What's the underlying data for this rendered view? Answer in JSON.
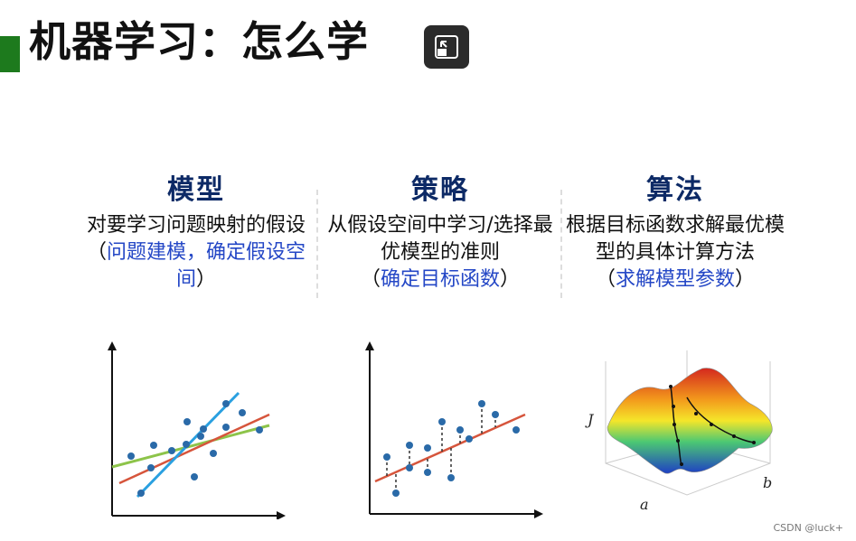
{
  "header": {
    "title": "机器学习：怎么学"
  },
  "columns": [
    {
      "heading": "模型",
      "desc_plain": "对要学习问题映射的假设",
      "paren_open": "（",
      "desc_blue": "问题建模，确定假设空间",
      "paren_close": "）"
    },
    {
      "heading": "策略",
      "desc_plain": "从假设空间中学习/选择最优模型的准则",
      "paren_open": "（",
      "desc_blue": "确定目标函数",
      "paren_close": "）"
    },
    {
      "heading": "算法",
      "desc_plain": "根据目标函数求解最优模型的具体计算方法",
      "paren_open": "（",
      "desc_blue": "求解模型参数",
      "paren_close": "）"
    }
  ],
  "surface_axes": {
    "y": "J",
    "x": "a",
    "z": "b"
  },
  "watermark": "CSDN @luck+",
  "icons": {
    "expand": "expand-icon"
  }
}
